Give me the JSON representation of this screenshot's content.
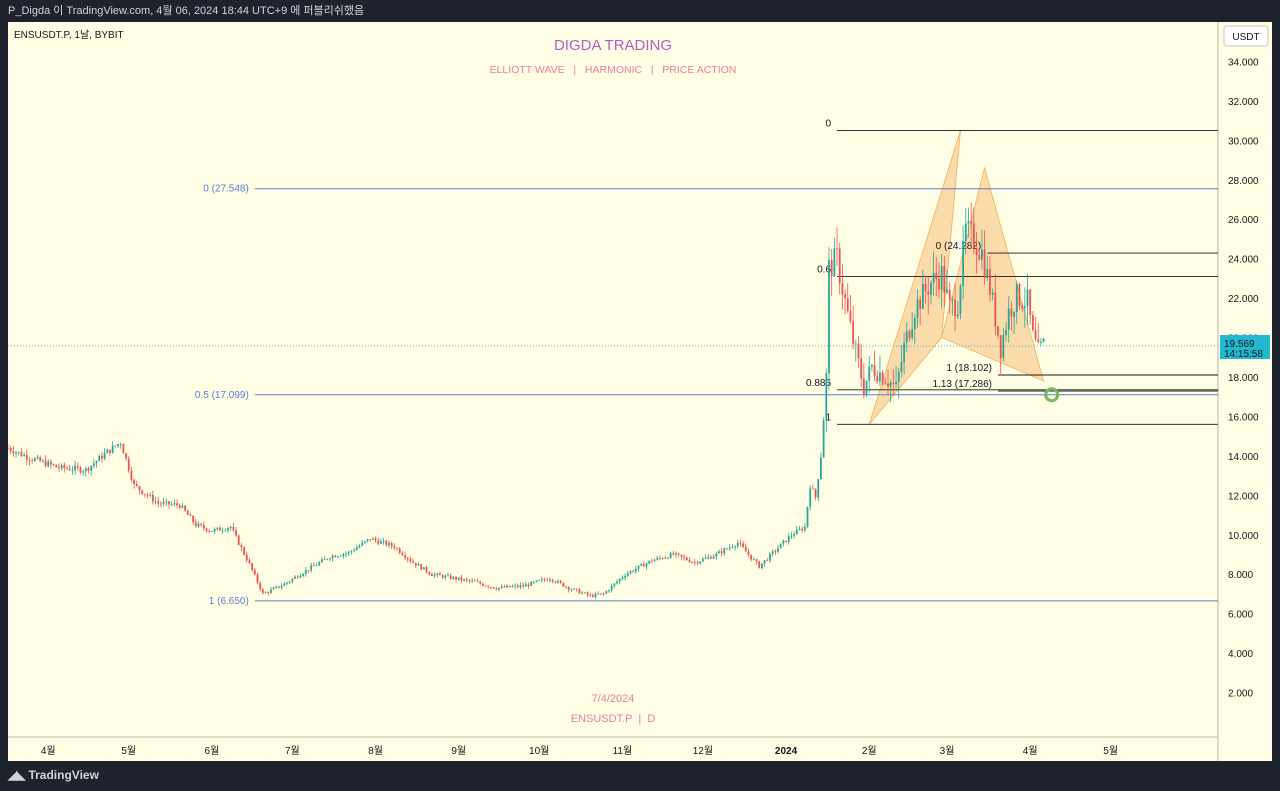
{
  "header": {
    "caption": "P_Digda 이 TradingView.com, 4월 06, 2024 18:44 UTC+9 에 퍼블리쉬했음"
  },
  "footer": {
    "brand": "TradingView"
  },
  "colors": {
    "background": "#fffde3",
    "up": "#26a69a",
    "down": "#ef5350",
    "fib_blue": "#5b7fd6",
    "black_line": "#131722",
    "harmonic_fill": "#f7c98a",
    "watermark": "#e57fa7",
    "price_tag": "#22b8cf",
    "target_circle": "#7bb661"
  },
  "chart_data": {
    "type": "candlestick",
    "symbol_label": "ENSUSDT.P, 1날, BYBIT",
    "title": "DIGDA TRADING",
    "subtitle": "ELLIOTT WAVE   |   HARMONIC   |   PRICE ACTION",
    "watermark_date": "7/4/2024",
    "watermark_symbol": "ENSUSDT.P  |  D",
    "y_axis": {
      "unit": "USDT",
      "range": [
        0,
        36
      ],
      "ticks": [
        "34.000",
        "32.000",
        "30.000",
        "28.000",
        "26.000",
        "24.000",
        "22.000",
        "20.000",
        "18.000",
        "16.000",
        "14.000",
        "12.000",
        "10.000",
        "8.000",
        "6.000",
        "4.000",
        "2.000"
      ]
    },
    "x_axis": {
      "range": [
        "2023-03-17",
        "2024-06-10"
      ],
      "ticks": [
        {
          "date": "2023-04-01",
          "label": "4월",
          "bold": false
        },
        {
          "date": "2023-05-01",
          "label": "5월",
          "bold": false
        },
        {
          "date": "2023-06-01",
          "label": "6월",
          "bold": false
        },
        {
          "date": "2023-07-01",
          "label": "7월",
          "bold": false
        },
        {
          "date": "2023-08-01",
          "label": "8월",
          "bold": false
        },
        {
          "date": "2023-09-01",
          "label": "9월",
          "bold": false
        },
        {
          "date": "2023-10-01",
          "label": "10월",
          "bold": false
        },
        {
          "date": "2023-11-01",
          "label": "11월",
          "bold": false
        },
        {
          "date": "2023-12-01",
          "label": "12월",
          "bold": false
        },
        {
          "date": "2024-01-01",
          "label": "2024",
          "bold": true
        },
        {
          "date": "2024-02-01",
          "label": "2월",
          "bold": false
        },
        {
          "date": "2024-03-01",
          "label": "3월",
          "bold": false
        },
        {
          "date": "2024-04-01",
          "label": "4월",
          "bold": false
        },
        {
          "date": "2024-05-01",
          "label": "5월",
          "bold": false
        }
      ]
    },
    "price_path": [
      [
        "2023-03-17",
        14.4
      ],
      [
        "2023-03-25",
        13.9
      ],
      [
        "2023-04-05",
        13.4
      ],
      [
        "2023-04-15",
        13.3
      ],
      [
        "2023-04-23",
        14.2
      ],
      [
        "2023-04-28",
        14.7
      ],
      [
        "2023-05-03",
        12.5
      ],
      [
        "2023-05-12",
        11.6
      ],
      [
        "2023-05-20",
        11.5
      ],
      [
        "2023-05-26",
        10.5
      ],
      [
        "2023-06-01",
        10.2
      ],
      [
        "2023-06-08",
        10.4
      ],
      [
        "2023-06-15",
        8.5
      ],
      [
        "2023-06-20",
        7.0
      ],
      [
        "2023-06-28",
        7.5
      ],
      [
        "2023-07-05",
        8.1
      ],
      [
        "2023-07-15",
        8.9
      ],
      [
        "2023-07-22",
        9.1
      ],
      [
        "2023-07-30",
        9.8
      ],
      [
        "2023-08-08",
        9.4
      ],
      [
        "2023-08-15",
        8.6
      ],
      [
        "2023-08-22",
        8.0
      ],
      [
        "2023-08-30",
        7.8
      ],
      [
        "2023-09-07",
        7.6
      ],
      [
        "2023-09-15",
        7.3
      ],
      [
        "2023-09-25",
        7.4
      ],
      [
        "2023-10-05",
        7.8
      ],
      [
        "2023-10-12",
        7.3
      ],
      [
        "2023-10-20",
        6.9
      ],
      [
        "2023-10-25",
        7.0
      ],
      [
        "2023-11-02",
        8.0
      ],
      [
        "2023-11-12",
        8.7
      ],
      [
        "2023-11-20",
        9.0
      ],
      [
        "2023-11-28",
        8.6
      ],
      [
        "2023-12-06",
        9.0
      ],
      [
        "2023-12-14",
        9.6
      ],
      [
        "2023-12-22",
        8.4
      ],
      [
        "2023-12-28",
        9.2
      ],
      [
        "2024-01-03",
        10.0
      ],
      [
        "2024-01-08",
        10.4
      ],
      [
        "2024-01-10",
        12.5
      ],
      [
        "2024-01-12",
        11.9
      ],
      [
        "2024-01-14",
        14.0
      ],
      [
        "2024-01-16",
        18.0
      ],
      [
        "2024-01-17",
        23.5
      ],
      [
        "2024-01-20",
        24.0
      ],
      [
        "2024-01-22",
        22.5
      ],
      [
        "2024-01-26",
        19.8
      ],
      [
        "2024-01-30",
        17.5
      ],
      [
        "2024-02-02",
        18.5
      ],
      [
        "2024-02-07",
        18.0
      ],
      [
        "2024-02-11",
        17.4
      ],
      [
        "2024-02-14",
        19.5
      ],
      [
        "2024-02-18",
        21.5
      ],
      [
        "2024-02-24",
        22.8
      ],
      [
        "2024-02-28",
        23.2
      ],
      [
        "2024-03-02",
        21.5
      ],
      [
        "2024-03-05",
        21.8
      ],
      [
        "2024-03-08",
        25.4
      ],
      [
        "2024-03-11",
        25.0
      ],
      [
        "2024-03-14",
        24.3
      ],
      [
        "2024-03-17",
        22.5
      ],
      [
        "2024-03-21",
        19.5
      ],
      [
        "2024-03-24",
        21.3
      ],
      [
        "2024-03-27",
        22.1
      ],
      [
        "2024-03-31",
        21.8
      ],
      [
        "2024-04-02",
        20.0
      ],
      [
        "2024-04-04",
        19.2
      ],
      [
        "2024-04-06",
        19.6
      ]
    ],
    "current_price": {
      "value": 19.569,
      "label": "19.569",
      "countdown": "14:15:58"
    },
    "fib_left": {
      "start_date": "2023-06-17",
      "levels": [
        {
          "label": "0 (27.548)",
          "value": 27.548
        },
        {
          "label": "0.5 (17.099)",
          "value": 17.099
        },
        {
          "label": "1 (6.650)",
          "value": 6.65
        }
      ]
    },
    "fib_right": {
      "levels": [
        {
          "label": "0",
          "value": 30.5,
          "start_date": "2024-01-20"
        },
        {
          "label": "0 (24.282)",
          "value": 24.282,
          "start_date": "2024-03-16"
        },
        {
          "label": "0.6",
          "value": 23.1,
          "start_date": "2024-01-20"
        },
        {
          "label": "1 (18.102)",
          "value": 18.102,
          "start_date": "2024-03-20"
        },
        {
          "label": "0.886",
          "value": 17.35,
          "start_date": "2024-01-20"
        },
        {
          "label": "1.13 (17.286)",
          "value": 17.286,
          "start_date": "2024-03-20"
        },
        {
          "label": "1",
          "value": 15.6,
          "start_date": "2024-01-20"
        }
      ]
    },
    "harmonic_pattern": {
      "points": [
        [
          "2024-02-01",
          15.6
        ],
        [
          "2024-03-06",
          30.5
        ],
        [
          "2024-02-28",
          20.0
        ],
        [
          "2024-03-15",
          28.6
        ],
        [
          "2024-04-06",
          17.8
        ]
      ]
    },
    "target_zone": {
      "date": "2024-04-09",
      "value": 17.1
    }
  }
}
